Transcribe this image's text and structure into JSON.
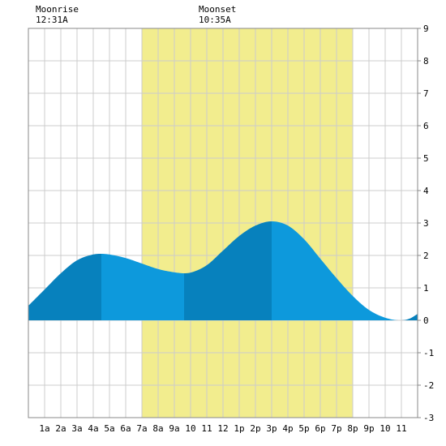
{
  "moon": {
    "rise_label": "Moonrise",
    "rise_time": "12:31A",
    "set_label": "Moonset",
    "set_time": "10:35A"
  },
  "chart_data": {
    "type": "area",
    "title": "",
    "xlabel": "",
    "ylabel": "",
    "xlim": [
      0,
      24
    ],
    "ylim": [
      -3,
      9
    ],
    "grid": true,
    "x_tick_labels": [
      "1a",
      "2a",
      "3a",
      "4a",
      "5a",
      "6a",
      "7a",
      "8a",
      "9a",
      "10",
      "11",
      "12",
      "1p",
      "2p",
      "3p",
      "4p",
      "5p",
      "6p",
      "7p",
      "8p",
      "9p",
      "10",
      "11"
    ],
    "y_ticks": [
      -3,
      -2,
      -1,
      0,
      1,
      2,
      3,
      4,
      5,
      6,
      7,
      8,
      9
    ],
    "daylight_hours": [
      7.0,
      20.0
    ],
    "tide_extrema": [
      {
        "x": 4.5,
        "y": 2.05,
        "kind": "high"
      },
      {
        "x": 9.6,
        "y": 1.45,
        "kind": "low"
      },
      {
        "x": 15.0,
        "y": 3.05,
        "kind": "high"
      },
      {
        "x": 22.9,
        "y": 0.0,
        "kind": "low"
      }
    ],
    "series": [
      {
        "x": [
          0,
          1,
          2,
          3,
          4,
          4.5,
          5,
          6,
          7,
          8,
          9,
          9.6,
          10,
          11,
          12,
          13,
          14,
          15,
          16,
          17,
          18,
          19,
          20,
          21,
          22,
          22.9,
          23.5,
          24
        ],
        "values": [
          0.45,
          0.95,
          1.45,
          1.85,
          2.03,
          2.05,
          2.03,
          1.92,
          1.75,
          1.58,
          1.48,
          1.45,
          1.47,
          1.7,
          2.15,
          2.6,
          2.92,
          3.05,
          2.92,
          2.5,
          1.9,
          1.3,
          0.75,
          0.32,
          0.08,
          0.0,
          0.05,
          0.2
        ]
      }
    ],
    "colors": {
      "daylight": "#f2ed8e",
      "tide_light": "#0d99dc",
      "tide_dark": "#0781bd",
      "grid": "#cccccc"
    }
  }
}
